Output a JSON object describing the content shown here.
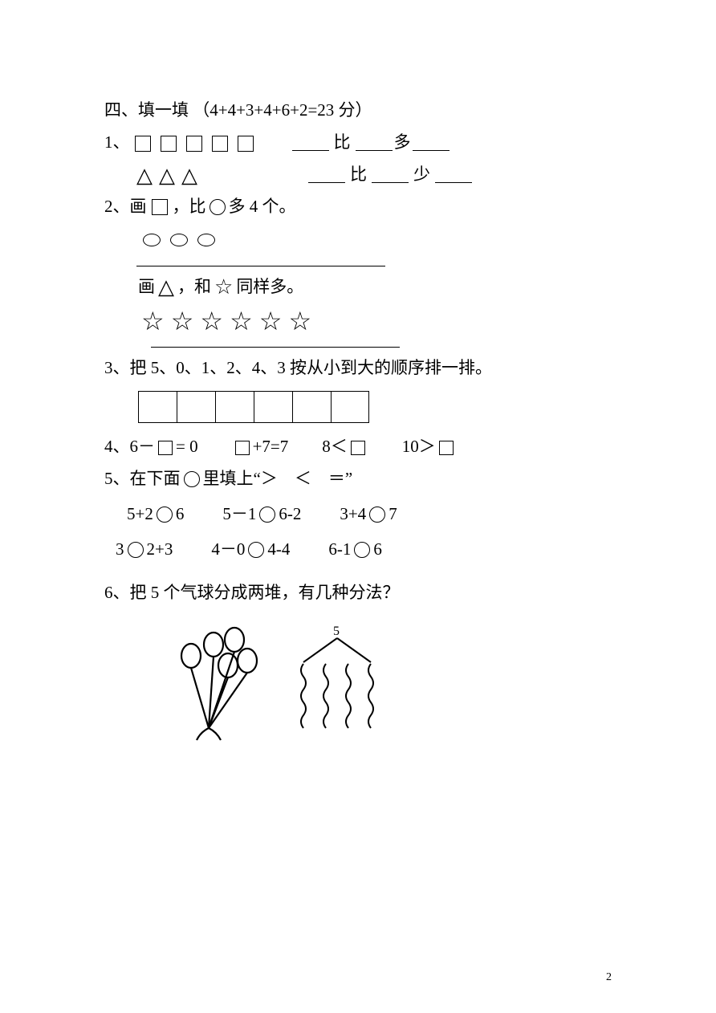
{
  "section": {
    "title": "四、填一填 （4+4+3+4+6+2=23 分）"
  },
  "q1": {
    "num": "1、",
    "squares_count": 5,
    "triangles_count": 3,
    "line1_mid": "比",
    "line1_end": "多",
    "line2_mid": "比",
    "line2_end": "少"
  },
  "q2": {
    "num": "2、",
    "part1_pre": "画",
    "part1_mid": "，比",
    "part1_post": "多 4 个。",
    "circles_count": 3,
    "part2_pre": "画",
    "part2_mid": "，和",
    "part2_post": "同样多。",
    "stars_count": 6
  },
  "q3": {
    "num": "3、",
    "text": "把 5、0、1、2、4、3 按从小到大的顺序排一排。",
    "box_count": 6
  },
  "q4": {
    "num": "4、",
    "items": [
      {
        "pre": "6－",
        "post": "= 0"
      },
      {
        "pre": "",
        "post": "+7=7"
      },
      {
        "pre": "8＜",
        "post": ""
      },
      {
        "pre": "10＞",
        "post": ""
      }
    ]
  },
  "q5": {
    "num": "5、",
    "intro_pre": "在下面",
    "intro_post": "里填上“＞　＜　＝”",
    "rows": [
      [
        {
          "l": "5+2",
          "r": "6"
        },
        {
          "l": "5－1",
          "r": "6-2"
        },
        {
          "l": "3+4",
          "r": "7"
        }
      ],
      [
        {
          "l": "3",
          "r": "2+3"
        },
        {
          "l": "4－0",
          "r": "4-4"
        },
        {
          "l": "6-1",
          "r": "6"
        }
      ]
    ]
  },
  "q6": {
    "num": "6、",
    "text": "把 5 个气球分成两堆，有几种分法？",
    "top_number": "5",
    "balloon_count": 5,
    "wavy_cols": 4
  },
  "page_number": "2"
}
